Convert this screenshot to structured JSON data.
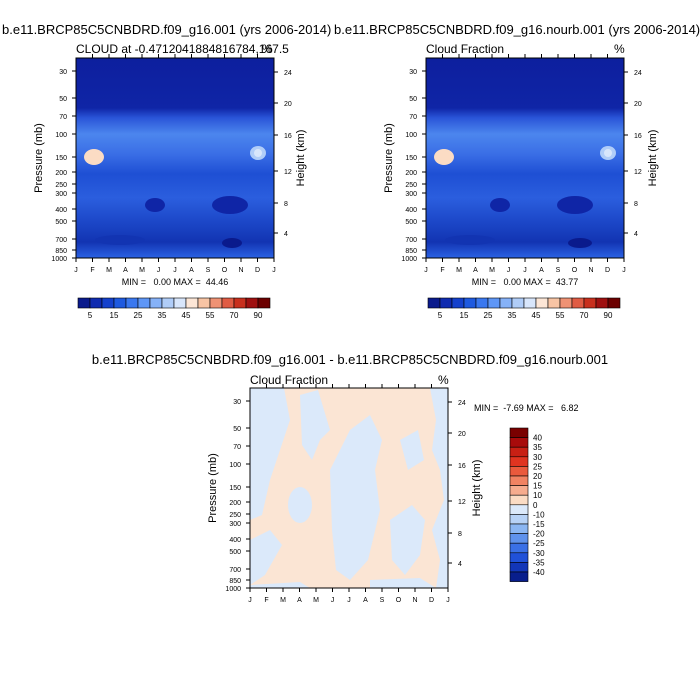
{
  "panels": [
    {
      "id": "top_left",
      "title": "b.e11.BRCP85C5CNBDRD.f09_g16.001 (yrs 2006-2014)",
      "subtitle_left": "CLOUD at -0.4712041884816784,167.5",
      "subtitle_right": "%",
      "minmax": "MIN =   0.00 MAX =  44.46"
    },
    {
      "id": "top_right",
      "title": "b.e11.BRCP85C5CNBDRD.f09_g16.nourb.001 (yrs 2006-2014)",
      "subtitle_left": "Cloud Fraction",
      "subtitle_right": "%",
      "minmax": "MIN =   0.00 MAX =  43.77"
    },
    {
      "id": "bottom",
      "title": "b.e11.BRCP85C5CNBDRD.f09_g16.001 - b.e11.BRCP85C5CNBDRD.f09_g16.nourb.001",
      "subtitle_left": "Cloud Fraction",
      "subtitle_right": "%",
      "minmax": "MIN =  -7.69 MAX =   6.82"
    }
  ],
  "chart_data": {
    "type": "heatmap",
    "x": [
      "J",
      "F",
      "M",
      "A",
      "M",
      "J",
      "J",
      "A",
      "S",
      "O",
      "N",
      "D",
      "J"
    ],
    "pressure_ticks": [
      30,
      50,
      70,
      100,
      150,
      200,
      250,
      300,
      400,
      500,
      700,
      850,
      1000
    ],
    "height_ticks": [
      4,
      8,
      12,
      16,
      20,
      24
    ],
    "ylabel": "Pressure (mb)",
    "ylabel_right": "Height (km)",
    "ylim_mb": [
      1000,
      20
    ],
    "colorbar_abs": {
      "labels": [
        "5",
        "15",
        "25",
        "35",
        "45",
        "55",
        "70",
        "90"
      ],
      "colors": [
        "#0a1a8c",
        "#0f2bb0",
        "#1541cc",
        "#1e5ae0",
        "#3a78f0",
        "#5e96f6",
        "#86b2f8",
        "#b0cdf8",
        "#d8e6fb",
        "#fce6d6",
        "#f7c4a4",
        "#ef9274",
        "#e05c44",
        "#c8301e",
        "#9f1010",
        "#6c0000"
      ]
    },
    "colorbar_diff": {
      "labels": [
        "40",
        "35",
        "30",
        "25",
        "20",
        "15",
        "10",
        "0",
        "-10",
        "-15",
        "-20",
        "-25",
        "-30",
        "-35",
        "-40"
      ],
      "colors": [
        "#7a0000",
        "#a80b0b",
        "#c82014",
        "#e03420",
        "#ea5a3c",
        "#f18362",
        "#f6ac8e",
        "#fbdcc4",
        "#dbe9fa",
        "#b7d2f6",
        "#8bb6f2",
        "#5f92ec",
        "#3a70e6",
        "#2051d8",
        "#1236b8",
        "#081e8c"
      ]
    }
  }
}
